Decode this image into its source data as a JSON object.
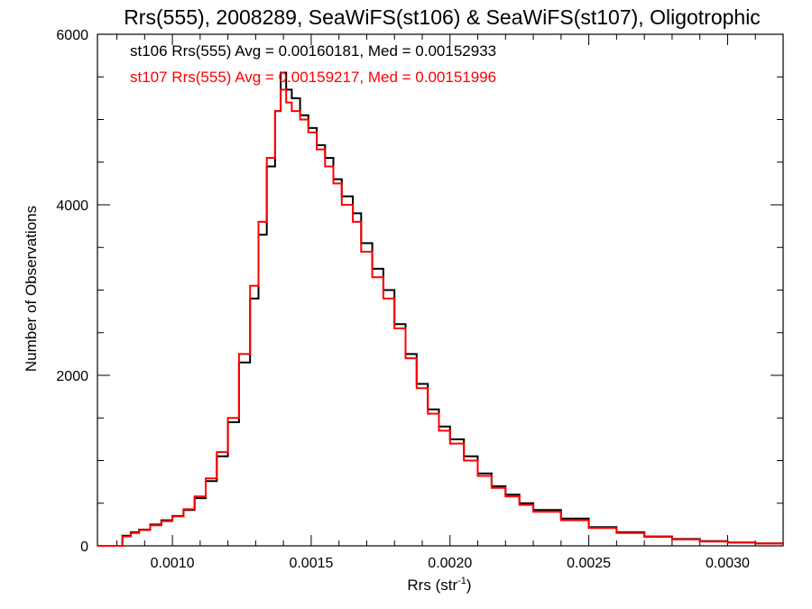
{
  "chart_data": {
    "type": "line",
    "title": "Rrs(555), 2008289, SeaWiFS(st106) & SeaWiFS(st107), Oligotrophic",
    "xlabel_main": "Rrs (str",
    "xlabel_sup": "-1",
    "xlabel_end": ")",
    "ylabel": "Number of Observations",
    "xlim": [
      0.00073,
      0.0032
    ],
    "ylim": [
      0,
      6000
    ],
    "x_ticks": [
      0.001,
      0.0015,
      0.002,
      0.0025,
      0.003
    ],
    "x_tick_labels": [
      "0.0010",
      "0.0015",
      "0.0020",
      "0.0025",
      "0.0030"
    ],
    "y_ticks": [
      0,
      2000,
      4000,
      6000
    ],
    "y_tick_labels": [
      "0",
      "2000",
      "4000",
      "6000"
    ],
    "legend": [
      {
        "text": "st106 Rrs(555) Avg = 0.00160181, Med = 0.00152933",
        "color": "#000000"
      },
      {
        "text": "st107 Rrs(555) Avg = 0.00159217, Med = 0.00151996",
        "color": "#ff0000"
      }
    ],
    "series": [
      {
        "color": "#000000",
        "points": [
          [
            0.00073,
            0
          ],
          [
            0.0008,
            0
          ],
          [
            0.00082,
            120
          ],
          [
            0.00085,
            160
          ],
          [
            0.00088,
            190
          ],
          [
            0.00092,
            250
          ],
          [
            0.00096,
            300
          ],
          [
            0.001,
            350
          ],
          [
            0.00104,
            420
          ],
          [
            0.00108,
            560
          ],
          [
            0.00112,
            760
          ],
          [
            0.00116,
            1050
          ],
          [
            0.0012,
            1450
          ],
          [
            0.00124,
            2150
          ],
          [
            0.00128,
            2900
          ],
          [
            0.00131,
            3650
          ],
          [
            0.00134,
            4450
          ],
          [
            0.00137,
            5100
          ],
          [
            0.00139,
            5550
          ],
          [
            0.00141,
            5350
          ],
          [
            0.00143,
            5250
          ],
          [
            0.00146,
            5050
          ],
          [
            0.00149,
            4900
          ],
          [
            0.00152,
            4700
          ],
          [
            0.00155,
            4550
          ],
          [
            0.00158,
            4300
          ],
          [
            0.00161,
            4100
          ],
          [
            0.00165,
            3900
          ],
          [
            0.00168,
            3550
          ],
          [
            0.00172,
            3250
          ],
          [
            0.00176,
            3000
          ],
          [
            0.0018,
            2600
          ],
          [
            0.00184,
            2250
          ],
          [
            0.00188,
            1900
          ],
          [
            0.00192,
            1600
          ],
          [
            0.00196,
            1400
          ],
          [
            0.002,
            1250
          ],
          [
            0.00205,
            1050
          ],
          [
            0.0021,
            850
          ],
          [
            0.00215,
            700
          ],
          [
            0.0022,
            600
          ],
          [
            0.00225,
            500
          ],
          [
            0.0023,
            420
          ],
          [
            0.0024,
            320
          ],
          [
            0.0025,
            220
          ],
          [
            0.0026,
            160
          ],
          [
            0.0027,
            110
          ],
          [
            0.0028,
            80
          ],
          [
            0.0029,
            55
          ],
          [
            0.003,
            40
          ],
          [
            0.0031,
            30
          ],
          [
            0.0032,
            20
          ]
        ]
      },
      {
        "color": "#ff0000",
        "points": [
          [
            0.00073,
            0
          ],
          [
            0.0008,
            0
          ],
          [
            0.00082,
            110
          ],
          [
            0.00085,
            150
          ],
          [
            0.00088,
            185
          ],
          [
            0.00092,
            240
          ],
          [
            0.00096,
            290
          ],
          [
            0.001,
            345
          ],
          [
            0.00104,
            430
          ],
          [
            0.00108,
            580
          ],
          [
            0.00112,
            790
          ],
          [
            0.00116,
            1100
          ],
          [
            0.0012,
            1500
          ],
          [
            0.00124,
            2250
          ],
          [
            0.00128,
            3050
          ],
          [
            0.00131,
            3800
          ],
          [
            0.00134,
            4550
          ],
          [
            0.00137,
            5100
          ],
          [
            0.00139,
            5350
          ],
          [
            0.00141,
            5200
          ],
          [
            0.00143,
            5100
          ],
          [
            0.00146,
            5000
          ],
          [
            0.00149,
            4850
          ],
          [
            0.00152,
            4650
          ],
          [
            0.00155,
            4450
          ],
          [
            0.00158,
            4250
          ],
          [
            0.00161,
            4000
          ],
          [
            0.00165,
            3800
          ],
          [
            0.00168,
            3450
          ],
          [
            0.00172,
            3150
          ],
          [
            0.00176,
            2900
          ],
          [
            0.0018,
            2550
          ],
          [
            0.00184,
            2200
          ],
          [
            0.00188,
            1850
          ],
          [
            0.00192,
            1550
          ],
          [
            0.00196,
            1350
          ],
          [
            0.002,
            1200
          ],
          [
            0.00205,
            1000
          ],
          [
            0.0021,
            820
          ],
          [
            0.00215,
            680
          ],
          [
            0.0022,
            580
          ],
          [
            0.00225,
            480
          ],
          [
            0.0023,
            400
          ],
          [
            0.0024,
            300
          ],
          [
            0.0025,
            210
          ],
          [
            0.0026,
            150
          ],
          [
            0.0027,
            105
          ],
          [
            0.0028,
            75
          ],
          [
            0.0029,
            50
          ],
          [
            0.003,
            38
          ],
          [
            0.0031,
            28
          ],
          [
            0.0032,
            18
          ]
        ]
      }
    ]
  }
}
